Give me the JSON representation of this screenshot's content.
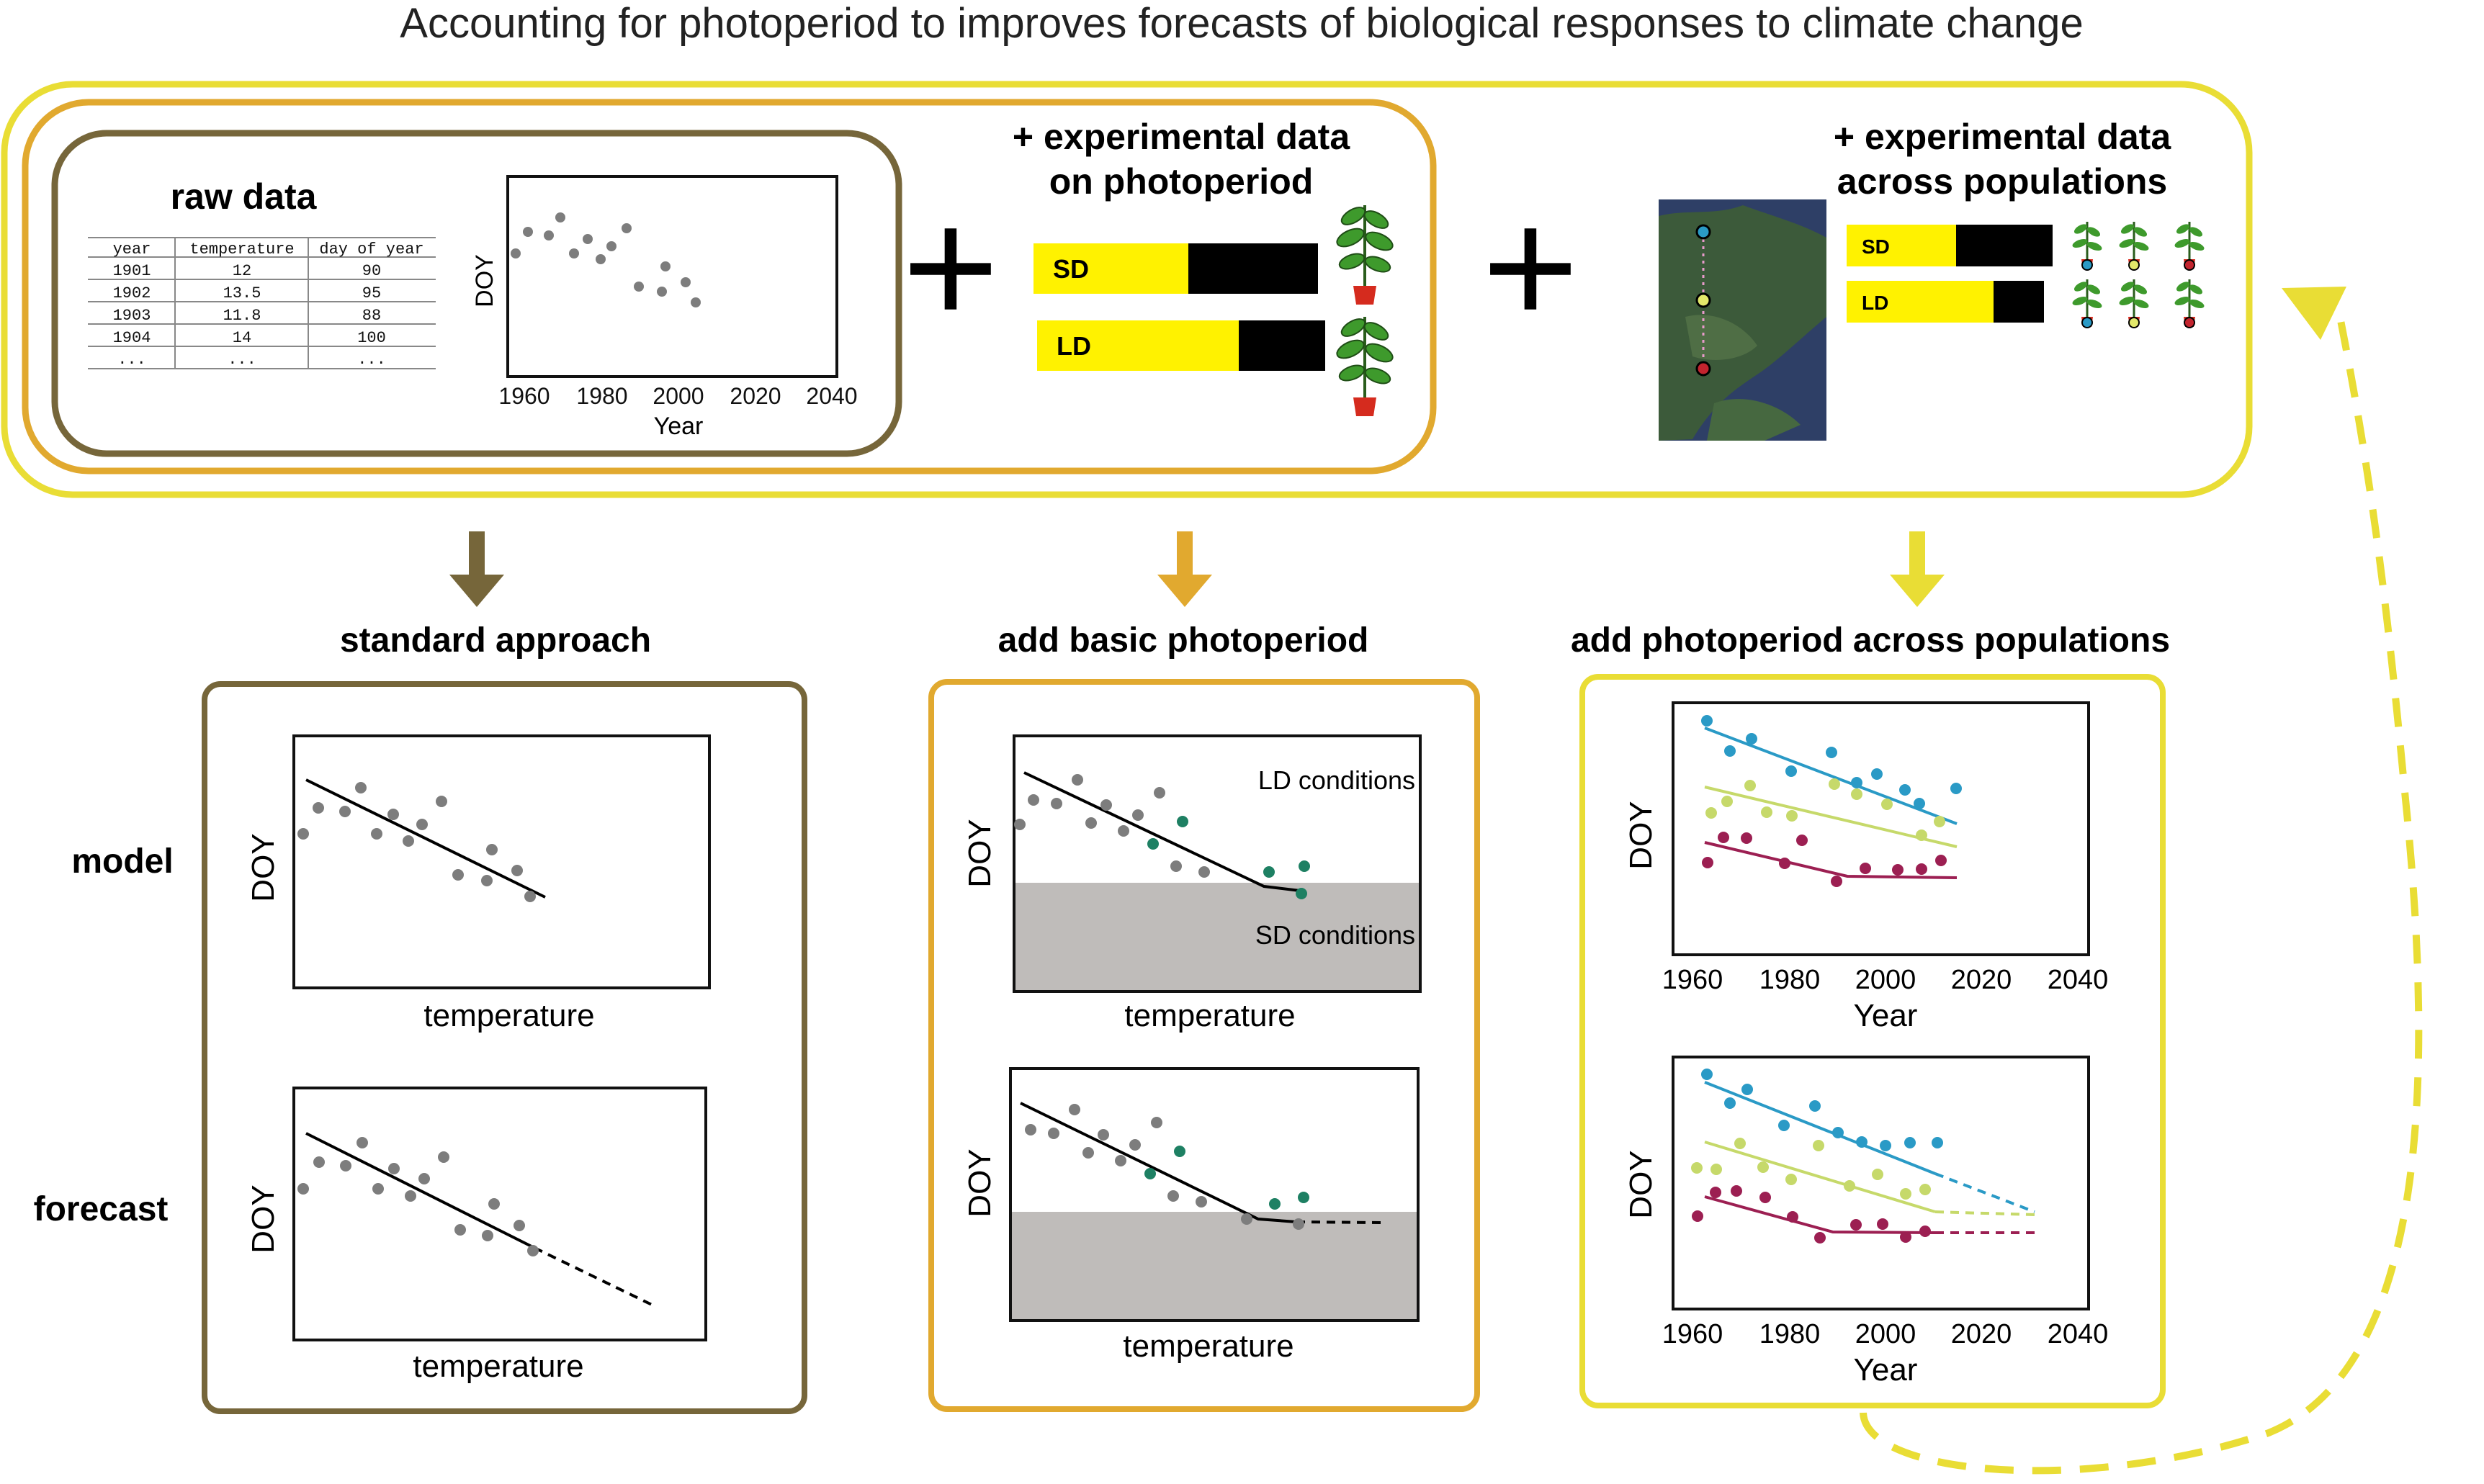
{
  "title": "Accounting for photoperiod to improves forecasts of biological responses to climate change",
  "raw": {
    "label": "raw data",
    "table": {
      "headers": [
        "year",
        "temperature",
        "day of year"
      ],
      "rows": [
        [
          "1901",
          "12",
          "90"
        ],
        [
          "1902",
          "13.5",
          "95"
        ],
        [
          "1903",
          "11.8",
          "88"
        ],
        [
          "1904",
          "14",
          "100"
        ],
        [
          "...",
          "...",
          "..."
        ]
      ]
    },
    "plot": {
      "ylabel": "DOY",
      "xlabel": "Year",
      "ticks": [
        "1960",
        "1980",
        "2000",
        "2020",
        "2040"
      ]
    }
  },
  "plus": "+",
  "photo_exp": {
    "label_line1": "+ experimental data",
    "label_line2": "on photoperiod",
    "bars": [
      "SD",
      "LD"
    ]
  },
  "pop_exp": {
    "label_line1": "+ experimental data",
    "label_line2": "across populations",
    "bars": [
      "SD",
      "LD"
    ]
  },
  "columns": [
    {
      "title": "standard approach",
      "xlabel_model": "temperature",
      "xlabel_forecast": "temperature",
      "ylabel": "DOY"
    },
    {
      "title": "add basic photoperiod",
      "xlabel_model": "temperature",
      "xlabel_forecast": "temperature",
      "ylabel": "DOY",
      "ld_label": "LD conditions",
      "sd_label": "SD conditions"
    },
    {
      "title": "add photoperiod across populations",
      "xlabel": "Year",
      "ylabel": "DOY",
      "ticks": [
        "1960",
        "1980",
        "2000",
        "2020",
        "2040"
      ]
    }
  ],
  "row_labels": {
    "model": "model",
    "forecast": "forecast"
  },
  "colors": {
    "dark_olive": "#76663a",
    "mid_gold": "#e1a92f",
    "bright_yellow": "#e9dd35",
    "bar_yellow": "#fff200",
    "sd_gray": "#bfbcba",
    "point_gray": "#7d7d7d",
    "point_green": "#1e8063",
    "pop_blue": "#2a9ac6",
    "pop_lime": "#c6d96a",
    "pop_maroon": "#9c1f52"
  }
}
